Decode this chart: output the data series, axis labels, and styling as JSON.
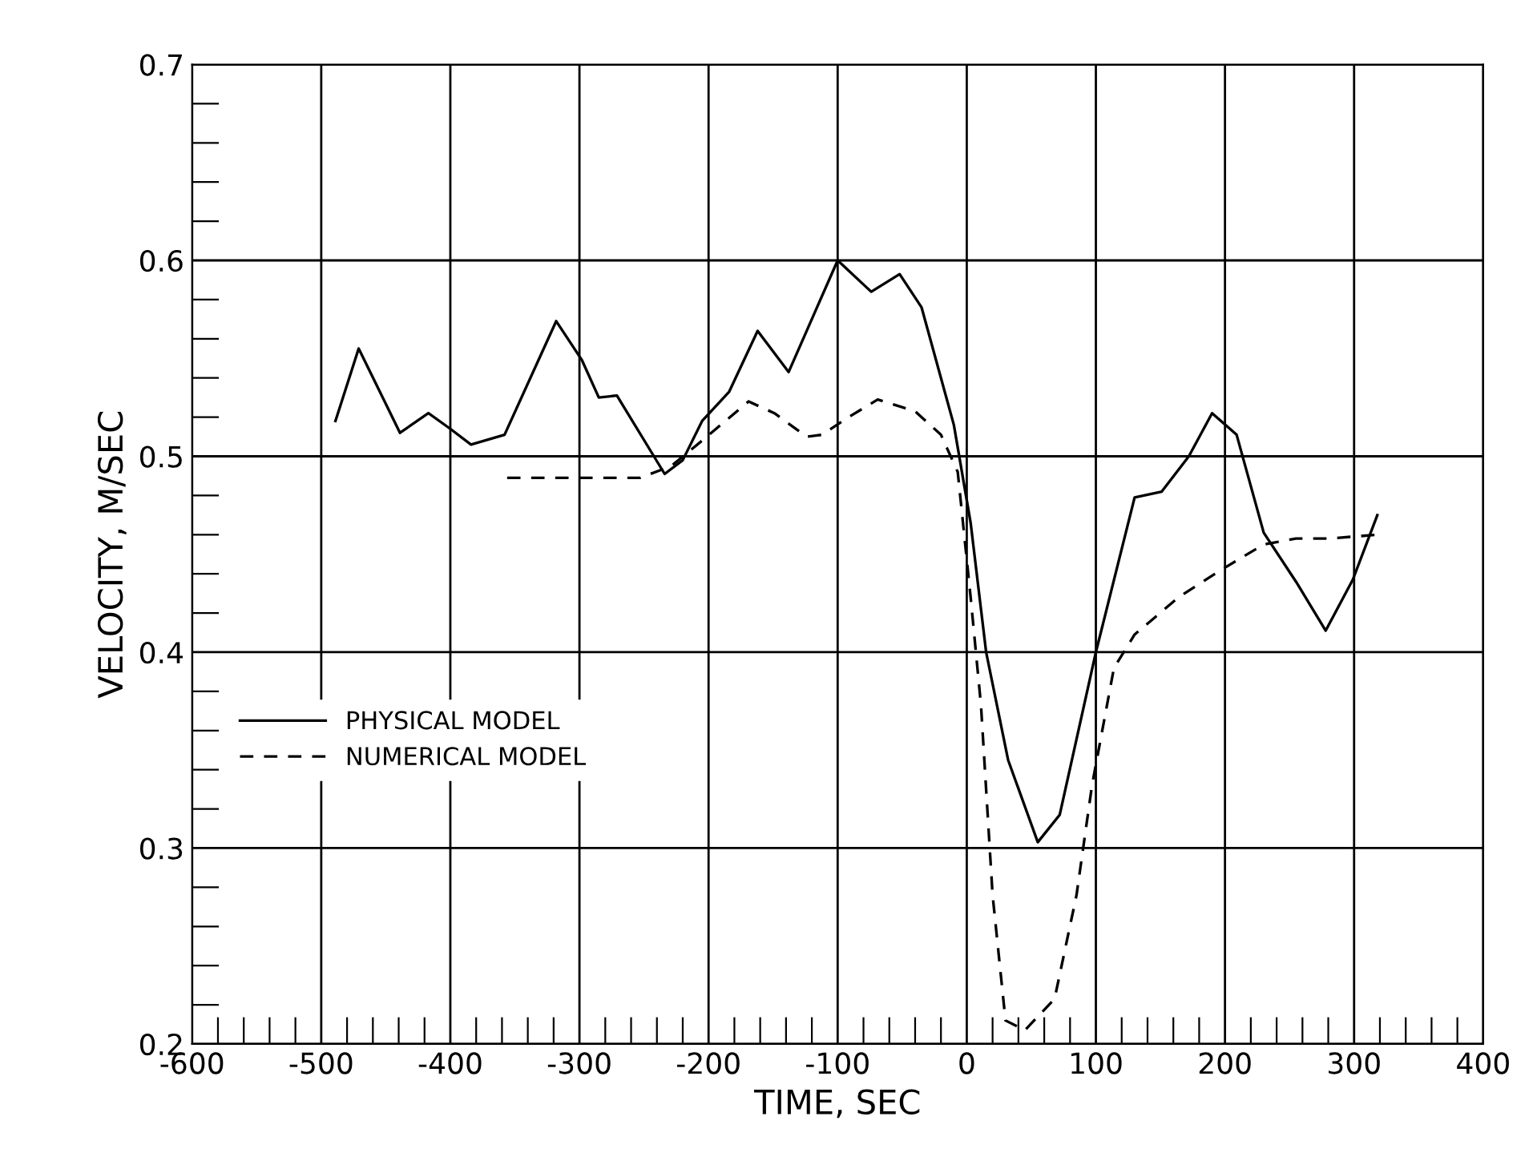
{
  "chart_data": {
    "type": "line",
    "xlabel": "TIME, SEC",
    "ylabel": "VELOCITY, M/SEC",
    "xlim": [
      -600,
      400
    ],
    "xticks": [
      -600,
      -500,
      -400,
      -300,
      -200,
      -100,
      0,
      100,
      200,
      300,
      400
    ],
    "ylim": [
      0.2,
      0.7
    ],
    "yticks": [
      0.2,
      0.3,
      0.4,
      0.5,
      0.6,
      0.7
    ],
    "grid": true,
    "legend": "left",
    "series": [
      {
        "name": "PHYSICAL MODEL",
        "color": "#000000",
        "line_style": "solid",
        "x": [
          -489,
          -471,
          -439,
          -417,
          -400,
          -384,
          -358,
          -318,
          -298,
          -285,
          -271,
          -234,
          -220,
          -205,
          -184,
          -162,
          -138,
          -100,
          -74,
          -52,
          -35,
          -10,
          3,
          15,
          32,
          55,
          72,
          100,
          130,
          151,
          172,
          190,
          209,
          230,
          255,
          278,
          299,
          318
        ],
        "values": [
          0.518,
          0.555,
          0.512,
          0.522,
          0.514,
          0.506,
          0.511,
          0.569,
          0.549,
          0.53,
          0.531,
          0.491,
          0.498,
          0.518,
          0.533,
          0.564,
          0.543,
          0.6,
          0.584,
          0.593,
          0.576,
          0.516,
          0.466,
          0.4,
          0.345,
          0.303,
          0.317,
          0.4,
          0.479,
          0.482,
          0.5,
          0.522,
          0.511,
          0.461,
          0.436,
          0.411,
          0.437,
          0.47
        ]
      },
      {
        "name": "NUMERICAL MODEL",
        "color": "#000000",
        "line_style": "dashed",
        "x": [
          -356,
          -298,
          -253,
          -229,
          -205,
          -169,
          -149,
          -124,
          -112,
          -94,
          -69,
          -40,
          -20,
          -7,
          3,
          11,
          20,
          30,
          45,
          68,
          85,
          97,
          114,
          130,
          164,
          197,
          230,
          255,
          280,
          319
        ],
        "values": [
          0.489,
          0.489,
          0.489,
          0.495,
          0.508,
          0.528,
          0.522,
          0.51,
          0.511,
          0.519,
          0.529,
          0.523,
          0.511,
          0.492,
          0.428,
          0.373,
          0.276,
          0.212,
          0.207,
          0.223,
          0.276,
          0.332,
          0.392,
          0.409,
          0.428,
          0.442,
          0.455,
          0.458,
          0.458,
          0.46
        ]
      }
    ]
  }
}
